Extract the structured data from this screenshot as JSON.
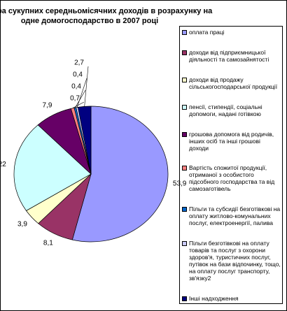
{
  "chart_data": {
    "type": "pie",
    "title": [
      "Структура сукупних середньомісячних доходів в розрахунку на",
      "одне домогосподарство в 2007 році"
    ],
    "categories": [
      "оплата праці",
      "доходи від підприємницької діяльності та самозайнятості",
      "доходи від продажу сільськогосподарської продукції",
      "пенсії, стипендії, соціальні допомоги, надані готівкою",
      "грошова допомога від родичів, інших осіб та інші грошові доходи",
      "Вартість спожитої продукції, отриманої з особистого підсобного господарства та від самозаготівель",
      "Пільги та субсидії безготівкові на оплату житлово-комунальних послуг, електроенергії, палива",
      "Пільги безготівкові на оплату товарів та послуг з охорони здоров'я, туристичних послуг, путівок на бази відпочинку, тощо, на оплату послуг транспорту, зв'язку2",
      "Інші надходження"
    ],
    "values": [
      53.9,
      8.1,
      3.9,
      22,
      7.9,
      0.7,
      0.4,
      0.4,
      2.7
    ],
    "value_labels": [
      "53,9",
      "8,1",
      "3,9",
      "22",
      "7,9",
      "0,7",
      "0,4",
      "0,4",
      "2,7"
    ],
    "colors": [
      "#9999ff",
      "#993366",
      "#ffffcc",
      "#ccffff",
      "#660066",
      "#ff8080",
      "#0066cc",
      "#ccccff",
      "#000080"
    ]
  }
}
